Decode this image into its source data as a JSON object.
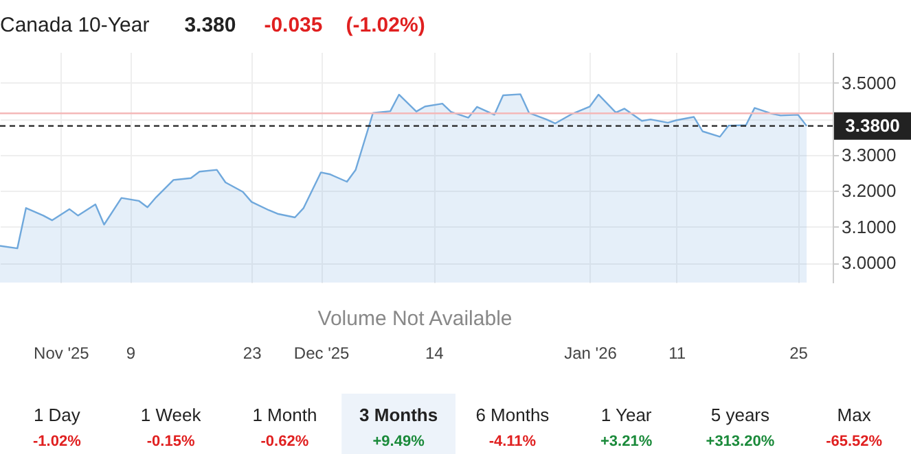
{
  "chart_data": {
    "type": "area",
    "title": "Canada 10-Year",
    "subtitle": "3.380 -0.035 (-1.02%)",
    "x": [
      "2025-10-25",
      "2025-10-27",
      "2025-10-28",
      "2025-10-30",
      "2025-10-31",
      "2025-11-02",
      "2025-11-03",
      "2025-11-05",
      "2025-11-06",
      "2025-11-08",
      "2025-11-10",
      "2025-11-11",
      "2025-11-12",
      "2025-11-14",
      "2025-11-16",
      "2025-11-17",
      "2025-11-19",
      "2025-11-20",
      "2025-11-22",
      "2025-11-23",
      "2025-11-25",
      "2025-11-26",
      "2025-11-28",
      "2025-11-29",
      "2025-12-01",
      "2025-12-02",
      "2025-12-04",
      "2025-12-05",
      "2025-12-07",
      "2025-12-09",
      "2025-12-10",
      "2025-12-12",
      "2025-12-13",
      "2025-12-15",
      "2025-12-16",
      "2025-12-18",
      "2025-12-19",
      "2025-12-21",
      "2025-12-22",
      "2025-12-24",
      "2025-12-25",
      "2025-12-27",
      "2025-12-28",
      "2025-12-30",
      "2026-01-01",
      "2026-01-02",
      "2026-01-04",
      "2026-01-05",
      "2026-01-07",
      "2026-01-08",
      "2026-01-10",
      "2026-01-11",
      "2026-01-13",
      "2026-01-14",
      "2026-01-16",
      "2026-01-17",
      "2026-01-19",
      "2026-01-20",
      "2026-01-22",
      "2026-01-23",
      "2026-01-25",
      "2026-01-26"
    ],
    "series": [
      {
        "color": "#6fa8dc",
        "values": [
          3.047,
          3.04,
          3.152,
          3.131,
          3.118,
          3.149,
          3.131,
          3.162,
          3.106,
          3.18,
          3.172,
          3.154,
          3.182,
          3.23,
          3.235,
          3.253,
          3.258,
          3.223,
          3.197,
          3.169,
          3.146,
          3.136,
          3.126,
          3.152,
          3.251,
          3.246,
          3.225,
          3.258,
          3.416,
          3.421,
          3.467,
          3.42,
          3.434,
          3.442,
          3.419,
          3.403,
          3.433,
          3.411,
          3.465,
          3.468,
          3.416,
          3.398,
          3.387,
          3.414,
          3.434,
          3.467,
          3.417,
          3.428,
          3.394,
          3.398,
          3.389,
          3.396,
          3.405,
          3.365,
          3.35,
          3.381,
          3.382,
          3.43,
          3.414,
          3.409,
          3.411,
          3.38
        ]
      }
    ],
    "xlim": [
      "2025-10-25",
      "2026-01-29"
    ],
    "xticks": [
      {
        "value": "2025-11-01",
        "label": "Nov '25"
      },
      {
        "value": "2025-11-09",
        "label": "9"
      },
      {
        "value": "2025-11-23",
        "label": "23"
      },
      {
        "value": "2025-12-01",
        "label": "Dec '25"
      },
      {
        "value": "2025-12-14",
        "label": "14"
      },
      {
        "value": "2026-01-01",
        "label": "Jan '26"
      },
      {
        "value": "2026-01-11",
        "label": "11"
      },
      {
        "value": "2026-01-25",
        "label": "25"
      }
    ],
    "ylim": [
      2.945,
      3.585
    ],
    "yticks": [
      {
        "value": 3.0,
        "label": "3.0000"
      },
      {
        "value": 3.1,
        "label": "3.1000"
      },
      {
        "value": 3.2,
        "label": "3.2000"
      },
      {
        "value": 3.3,
        "label": "3.3000"
      },
      {
        "value": 3.4,
        "label": null
      },
      {
        "value": 3.5,
        "label": "3.5000"
      }
    ],
    "grid": true,
    "marker": "none",
    "ref_lines": [
      {
        "axis": "y",
        "value": 3.415,
        "color": "#f4b8b8",
        "line_style": "solid"
      },
      {
        "axis": "y",
        "value": 3.38,
        "label": "3.3800",
        "color": "#222222",
        "line_style": "dashed"
      }
    ],
    "annotations": [
      "Volume Not Available",
      "1 Day",
      "-1.02%",
      "1 Week",
      "-0.15%",
      "1 Month",
      "-0.62%",
      "3 Months",
      "+9.49%",
      "6 Months",
      "-4.11%",
      "1 Year",
      "+3.21%",
      "5 years",
      "+313.20%",
      "Max",
      "-65.52%"
    ]
  }
}
